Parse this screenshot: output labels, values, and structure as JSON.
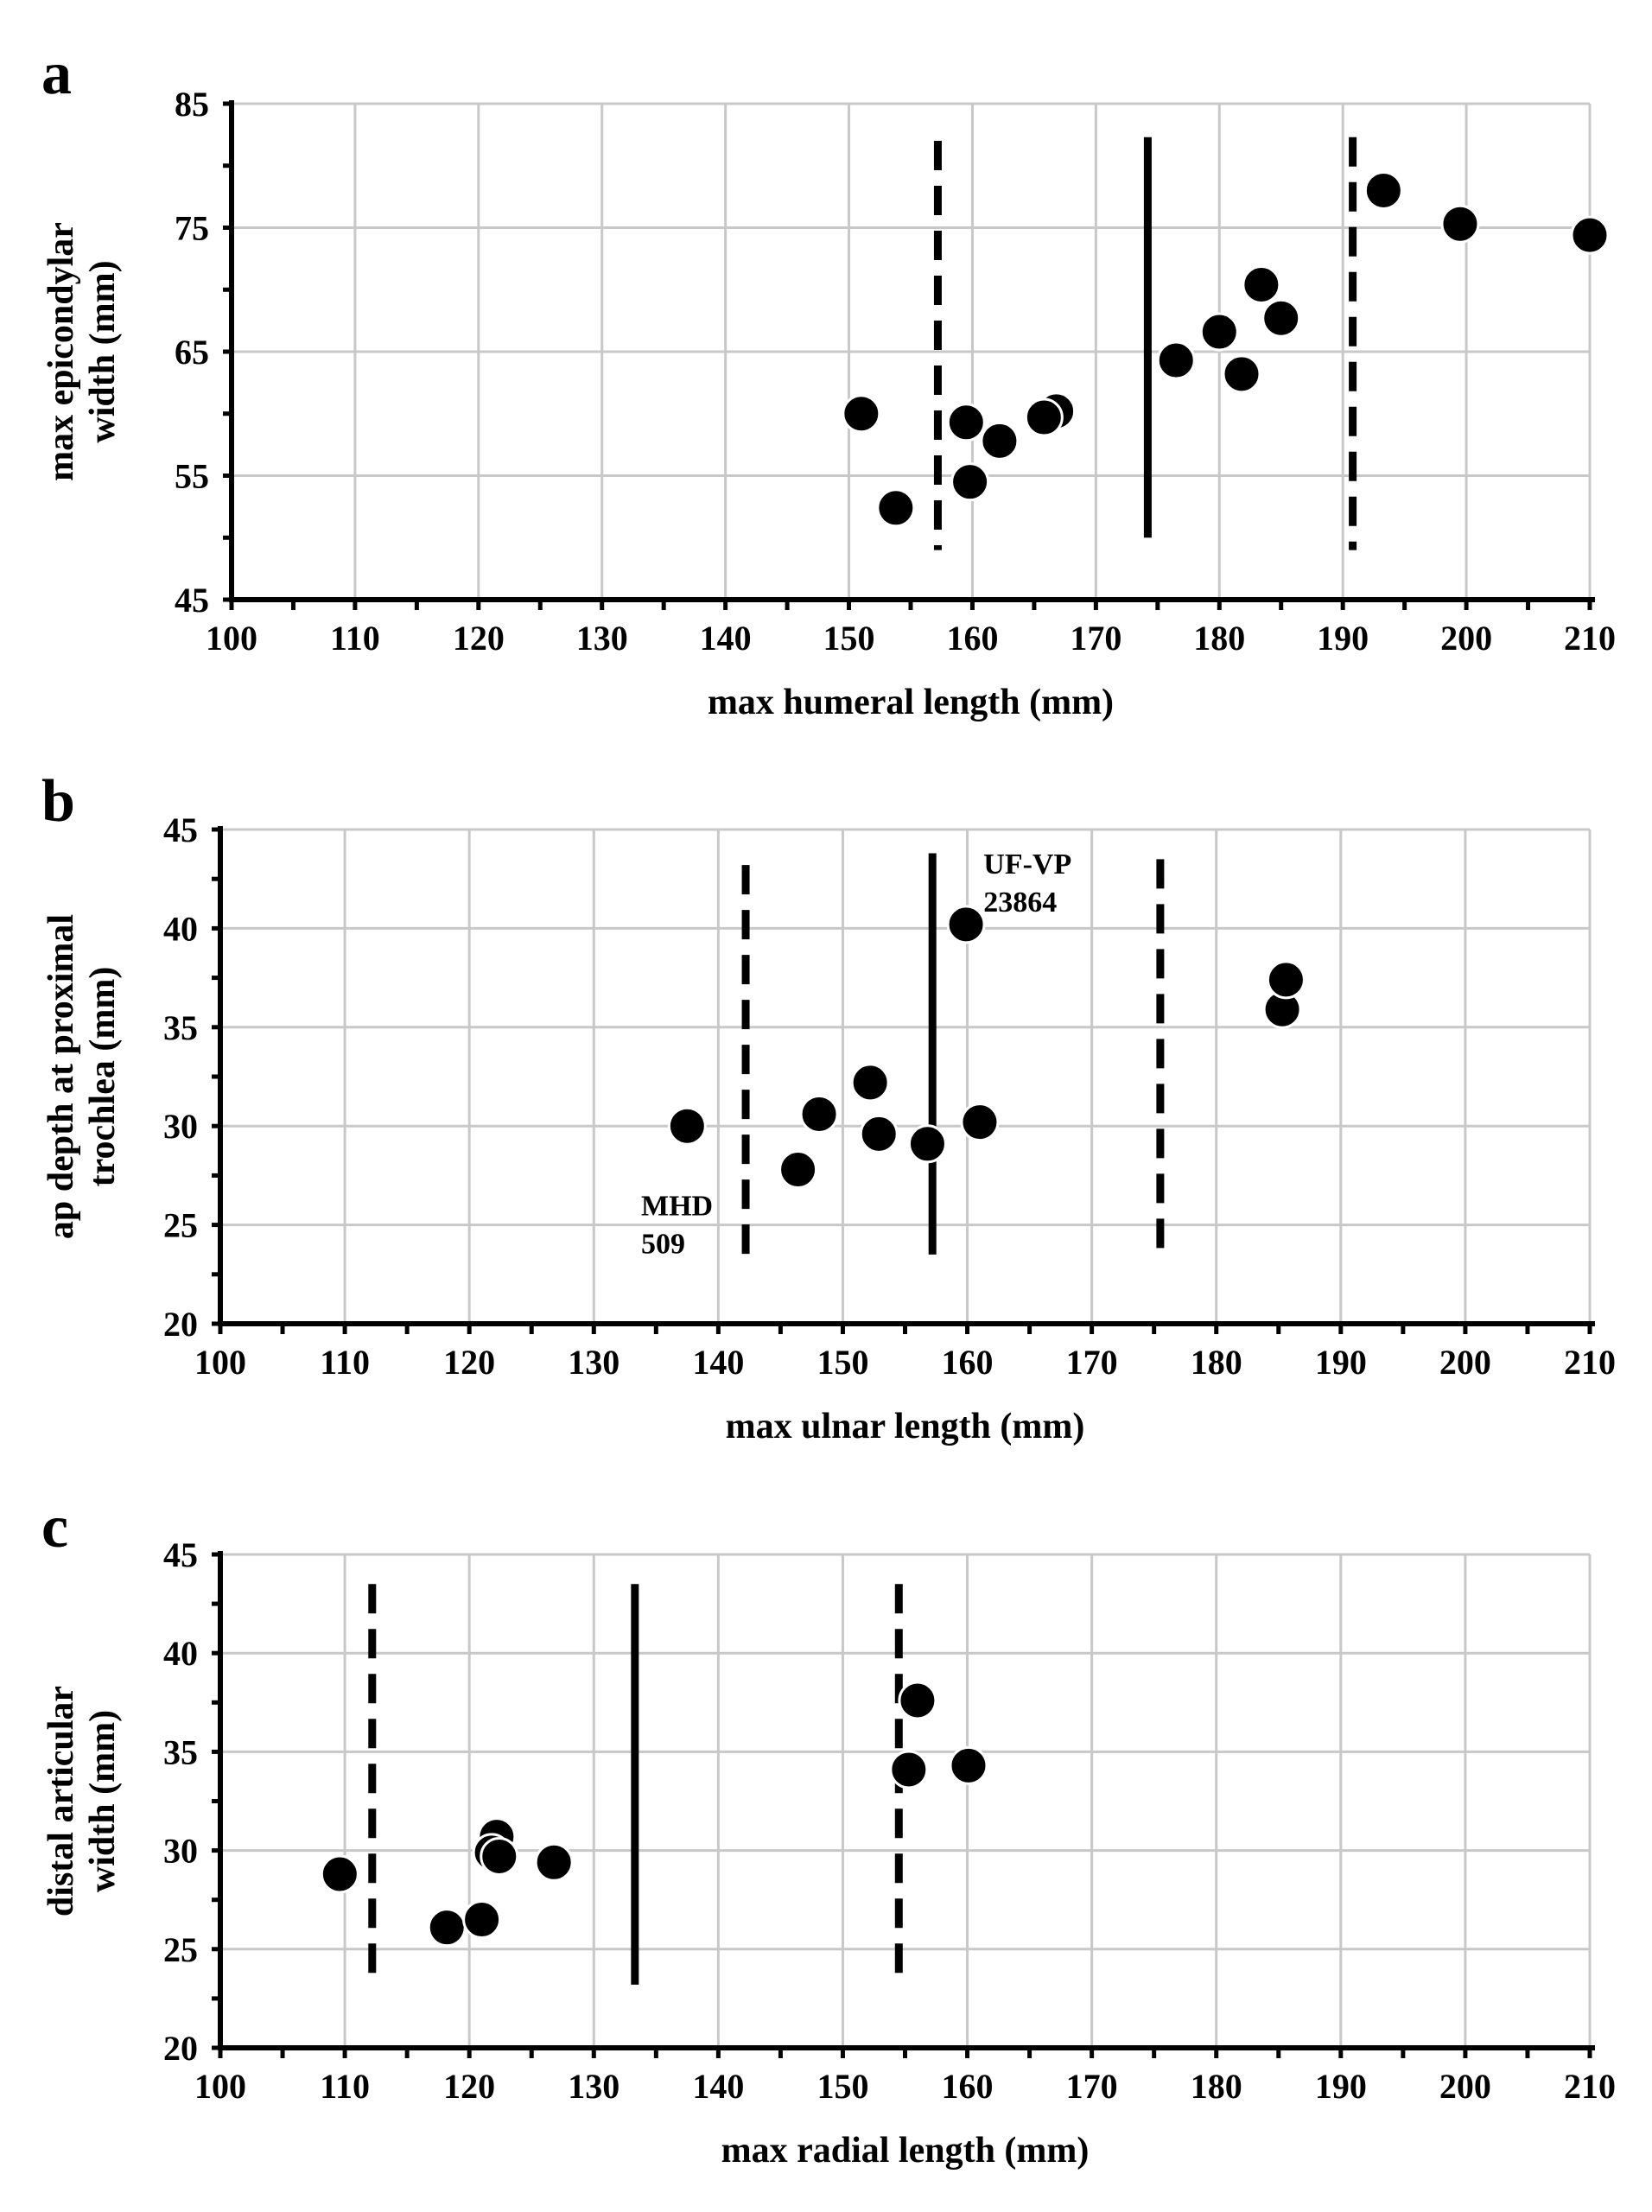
{
  "colors": {
    "grid": "#c8c8c8",
    "axis": "#000000",
    "marker": "#000000",
    "marker_edge": "#ffffff"
  },
  "chart_data": [
    {
      "panel_label": "a",
      "type": "scatter",
      "xlabel": "max humeral length (mm)",
      "ylabel_lines": [
        "max epicondylar",
        "width (mm)"
      ],
      "xlim": [
        100,
        210
      ],
      "ylim": [
        45,
        85
      ],
      "xticks": [
        100,
        110,
        120,
        130,
        140,
        150,
        160,
        170,
        180,
        190,
        200,
        210
      ],
      "yticks": [
        45,
        55,
        65,
        75,
        85
      ],
      "grid": true,
      "points": [
        {
          "x": 151.0,
          "y": 60.0
        },
        {
          "x": 153.8,
          "y": 52.4
        },
        {
          "x": 159.5,
          "y": 59.3
        },
        {
          "x": 159.8,
          "y": 54.5
        },
        {
          "x": 162.2,
          "y": 57.8
        },
        {
          "x": 166.8,
          "y": 60.2
        },
        {
          "x": 165.8,
          "y": 59.7
        },
        {
          "x": 176.5,
          "y": 64.3
        },
        {
          "x": 180.0,
          "y": 66.6
        },
        {
          "x": 181.8,
          "y": 63.2
        },
        {
          "x": 183.4,
          "y": 70.4
        },
        {
          "x": 185.0,
          "y": 67.7
        },
        {
          "x": 193.3,
          "y": 78.0
        },
        {
          "x": 199.5,
          "y": 75.3
        },
        {
          "x": 210.0,
          "y": 74.4
        }
      ],
      "vlines": [
        {
          "x": 157.2,
          "style": "dashed",
          "y0": 49,
          "y1": 82
        },
        {
          "x": 174.2,
          "style": "solid",
          "y0": 50,
          "y1": 82.3
        },
        {
          "x": 190.8,
          "style": "dashed",
          "y0": 49,
          "y1": 82.3
        }
      ],
      "annotations": []
    },
    {
      "panel_label": "b",
      "type": "scatter",
      "xlabel": "max ulnar length (mm)",
      "ylabel_lines": [
        "ap depth at proximal",
        "trochlea (mm)"
      ],
      "xlim": [
        100,
        210
      ],
      "ylim": [
        20,
        45
      ],
      "xticks": [
        100,
        110,
        120,
        130,
        140,
        150,
        160,
        170,
        180,
        190,
        200,
        210
      ],
      "yticks": [
        20,
        25,
        30,
        35,
        40,
        45
      ],
      "grid": true,
      "points": [
        {
          "x": 137.5,
          "y": 30.0
        },
        {
          "x": 146.4,
          "y": 27.8
        },
        {
          "x": 148.1,
          "y": 30.6
        },
        {
          "x": 152.2,
          "y": 32.2
        },
        {
          "x": 152.9,
          "y": 29.6
        },
        {
          "x": 156.8,
          "y": 29.1
        },
        {
          "x": 159.9,
          "y": 40.2
        },
        {
          "x": 161.0,
          "y": 30.2
        },
        {
          "x": 185.3,
          "y": 35.9
        },
        {
          "x": 185.6,
          "y": 37.4
        }
      ],
      "vlines": [
        {
          "x": 142.2,
          "style": "dashed",
          "y0": 23.0,
          "y1": 43.2
        },
        {
          "x": 157.2,
          "style": "solid",
          "y0": 23.5,
          "y1": 43.8
        },
        {
          "x": 175.5,
          "style": "dashed",
          "y0": 23.2,
          "y1": 43.5
        }
      ],
      "annotations": [
        {
          "lines": [
            "UF-VP",
            "23864"
          ],
          "x": 161.3,
          "y": 43.3
        },
        {
          "lines": [
            "MHD",
            "509"
          ],
          "x": 133.8,
          "y": 26.0
        }
      ]
    },
    {
      "panel_label": "c",
      "type": "scatter",
      "xlabel": "max radial length (mm)",
      "ylabel_lines": [
        "distal articular",
        "width (mm)"
      ],
      "xlim": [
        100,
        210
      ],
      "ylim": [
        20,
        45
      ],
      "xticks": [
        100,
        110,
        120,
        130,
        140,
        150,
        160,
        170,
        180,
        190,
        200,
        210
      ],
      "yticks": [
        20,
        25,
        30,
        35,
        40,
        45
      ],
      "grid": true,
      "points": [
        {
          "x": 109.6,
          "y": 28.8
        },
        {
          "x": 118.2,
          "y": 26.1
        },
        {
          "x": 121.0,
          "y": 26.5
        },
        {
          "x": 122.2,
          "y": 30.7
        },
        {
          "x": 121.8,
          "y": 29.9
        },
        {
          "x": 122.4,
          "y": 29.7
        },
        {
          "x": 126.8,
          "y": 29.4
        },
        {
          "x": 155.3,
          "y": 34.1
        },
        {
          "x": 156.0,
          "y": 37.6
        },
        {
          "x": 160.1,
          "y": 34.3
        }
      ],
      "vlines": [
        {
          "x": 112.2,
          "style": "dashed",
          "y0": 23.2,
          "y1": 43.5
        },
        {
          "x": 133.3,
          "style": "solid",
          "y0": 23.2,
          "y1": 43.5
        },
        {
          "x": 154.5,
          "style": "dashed",
          "y0": 23.2,
          "y1": 43.5
        }
      ],
      "annotations": []
    }
  ]
}
